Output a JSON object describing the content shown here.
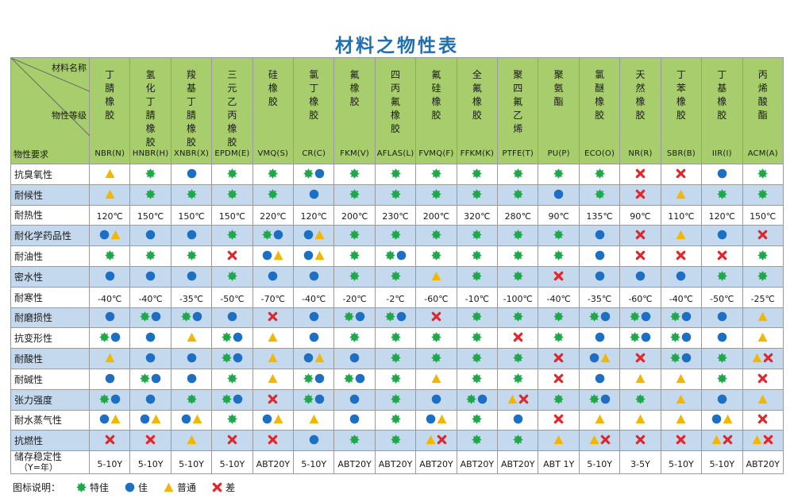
{
  "title": "材料之物性表",
  "corner": {
    "top": "材料名称",
    "middle": "物性等级",
    "bottom": "物性要求"
  },
  "symbol_colors": {
    "excellent": "#1fa84a",
    "good": "#1d6fc4",
    "fair": "#f2b705",
    "poor": "#e3262b"
  },
  "materials": [
    {
      "name": "丁腈橡胶",
      "code": "NBR(N)"
    },
    {
      "name": "氢化丁腈橡胶",
      "code": "HNBR(H)"
    },
    {
      "name": "羧基丁腈橡胶",
      "code": "XNBR(X)"
    },
    {
      "name": "三元乙丙橡胶",
      "code": "EPDM(E)"
    },
    {
      "name": "硅橡胶",
      "code": "VMQ(S)"
    },
    {
      "name": "氯丁橡胶",
      "code": "CR(C)"
    },
    {
      "name": "氟橡胶",
      "code": "FKM(V)"
    },
    {
      "name": "四丙氟橡胶",
      "code": "AFLAS(L)"
    },
    {
      "name": "氟硅橡胶",
      "code": "FVMQ(F)"
    },
    {
      "name": "全氟橡胶",
      "code": "FFKM(K)"
    },
    {
      "name": "聚四氟乙烯",
      "code": "PTFE(T)"
    },
    {
      "name": "聚氨酯",
      "code": "PU(P)"
    },
    {
      "name": "氯醚橡胶",
      "code": "ECO(O)"
    },
    {
      "name": "天然橡胶",
      "code": "NR(R)"
    },
    {
      "name": "丁苯橡胶",
      "code": "SBR(B)"
    },
    {
      "name": "丁基橡胶",
      "code": "IIR(I)"
    },
    {
      "name": "丙烯酸酯",
      "code": "ACM(A)"
    }
  ],
  "rows": [
    {
      "label": "抗臭氧性",
      "cells": [
        "A",
        "E",
        "G",
        "E",
        "E",
        "EG",
        "E",
        "E",
        "E",
        "E",
        "E",
        "E",
        "E",
        "P",
        "P",
        "G",
        "E"
      ]
    },
    {
      "label": "耐候性",
      "cells": [
        "A",
        "E",
        "E",
        "E",
        "E",
        "G",
        "E",
        "E",
        "E",
        "E",
        "E",
        "G",
        "E",
        "P",
        "A",
        "E",
        "E"
      ]
    },
    {
      "label": "耐热性",
      "cells": [
        "120℃",
        "150℃",
        "150℃",
        "150℃",
        "220℃",
        "120℃",
        "200℃",
        "230℃",
        "200℃",
        "320℃",
        "280℃",
        "90℃",
        "135℃",
        "90℃",
        "110℃",
        "120℃",
        "150℃"
      ]
    },
    {
      "label": "耐化学药品性",
      "cells": [
        "GA",
        "G",
        "G",
        "E",
        "EG",
        "GA",
        "E",
        "E",
        "E",
        "E",
        "E",
        "E",
        "G",
        "P",
        "A",
        "G",
        "P"
      ]
    },
    {
      "label": "耐油性",
      "cells": [
        "E",
        "E",
        "E",
        "P",
        "GA",
        "GA",
        "E",
        "EG",
        "E",
        "E",
        "E",
        "E",
        "G",
        "P",
        "P",
        "P",
        "E"
      ]
    },
    {
      "label": "密水性",
      "cells": [
        "G",
        "G",
        "G",
        "E",
        "G",
        "G",
        "E",
        "E",
        "A",
        "E",
        "E",
        "P",
        "G",
        "G",
        "G",
        "E",
        "E"
      ]
    },
    {
      "label": "耐寒性",
      "cells": [
        "-40℃",
        "-40℃",
        "-35℃",
        "-50℃",
        "-70℃",
        "-40℃",
        "-20℃",
        "-2℃",
        "-60℃",
        "-10℃",
        "-100℃",
        "-40℃",
        "-35℃",
        "-60℃",
        "-40℃",
        "-50℃",
        "-25℃"
      ]
    },
    {
      "label": "耐磨损性",
      "cells": [
        "G",
        "EG",
        "EG",
        "G",
        "P",
        "G",
        "EG",
        "EG",
        "P",
        "E",
        "E",
        "E",
        "EG",
        "EG",
        "EG",
        "G",
        "A"
      ]
    },
    {
      "label": "抗变形性",
      "cells": [
        "EG",
        "G",
        "A",
        "EG",
        "A",
        "G",
        "E",
        "E",
        "E",
        "E",
        "P",
        "E",
        "G",
        "EG",
        "EG",
        "G",
        "A"
      ]
    },
    {
      "label": "耐酸性",
      "cells": [
        "A",
        "G",
        "G",
        "EG",
        "A",
        "GA",
        "G",
        "E",
        "E",
        "E",
        "E",
        "P",
        "GA",
        "P",
        "EG",
        "E",
        "AP"
      ]
    },
    {
      "label": "耐碱性",
      "cells": [
        "G",
        "EG",
        "G",
        "E",
        "A",
        "EG",
        "EG",
        "E",
        "A",
        "E",
        "E",
        "P",
        "G",
        "A",
        "A",
        "E",
        "P"
      ]
    },
    {
      "label": "张力强度",
      "cells": [
        "EG",
        "G",
        "E",
        "EG",
        "P",
        "EG",
        "G",
        "E",
        "G",
        "EG",
        "AP",
        "E",
        "EG",
        "E",
        "A",
        "G",
        "A"
      ]
    },
    {
      "label": "耐水蒸气性",
      "cells": [
        "GA",
        "GA",
        "GA",
        "E",
        "GA",
        "A",
        "G",
        "E",
        "GA",
        "E",
        "G",
        "P",
        "A",
        "A",
        "A",
        "GA",
        "P"
      ]
    },
    {
      "label": "抗燃性",
      "cells": [
        "P",
        "P",
        "A",
        "P",
        "P",
        "G",
        "E",
        "E",
        "AP",
        "E",
        "E",
        "A",
        "AP",
        "P",
        "P",
        "AP",
        "AP"
      ]
    },
    {
      "label": "储存稳定性（Y=年）",
      "label_line1": "储存稳定性",
      "label_line2": "（Y=年）",
      "cells": [
        "5-10Y",
        "5-10Y",
        "5-10Y",
        "5-10Y",
        "ABT20Y",
        "5-10Y",
        "ABT20Y",
        "ABT20Y",
        "ABT20Y",
        "ABT20Y",
        "ABT20Y",
        "ABT 1Y",
        "5-10Y",
        "3-5Y",
        "5-10Y",
        "5-10Y",
        "ABT20Y"
      ]
    }
  ],
  "legend": {
    "label": "图标说明：",
    "items": [
      {
        "key": "excellent",
        "icon": "green-star-icon",
        "text": "特佳"
      },
      {
        "key": "good",
        "icon": "blue-circle-icon",
        "text": "佳"
      },
      {
        "key": "fair",
        "icon": "yellow-triangle-icon",
        "text": "普通"
      },
      {
        "key": "poor",
        "icon": "red-x-icon",
        "text": "差"
      }
    ]
  }
}
